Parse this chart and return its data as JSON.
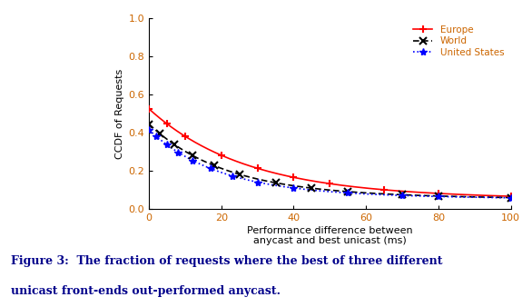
{
  "xlabel": "Performance difference between\nanycast and best unicast (ms)",
  "ylabel": "CCDF of Requests",
  "xlim": [
    0,
    100
  ],
  "ylim": [
    0,
    1
  ],
  "xticks": [
    0,
    20,
    40,
    60,
    80,
    100
  ],
  "yticks": [
    0,
    0.2,
    0.4,
    0.6,
    0.8,
    1
  ],
  "caption_line1": "Figure 3:  The fraction of requests where the best of three different",
  "caption_line2": "unicast front-ends out-performed anycast.",
  "background_color": "#ffffff",
  "tick_label_color": "#cc6600",
  "spine_color": "#000000",
  "europe_params": [
    0.45,
    0.038,
    0.075
  ],
  "world_params": [
    0.37,
    0.048,
    0.075
  ],
  "us_params": [
    0.34,
    0.052,
    0.075
  ],
  "europe_markers_x": [
    0,
    5,
    10,
    20,
    30,
    40,
    50,
    65,
    80,
    100
  ],
  "world_markers_x": [
    0,
    3,
    7,
    12,
    18,
    25,
    35,
    45,
    55,
    70,
    80,
    100
  ],
  "us_markers_x": [
    0,
    2,
    5,
    8,
    12,
    17,
    23,
    30,
    40,
    55,
    70,
    80,
    100
  ]
}
